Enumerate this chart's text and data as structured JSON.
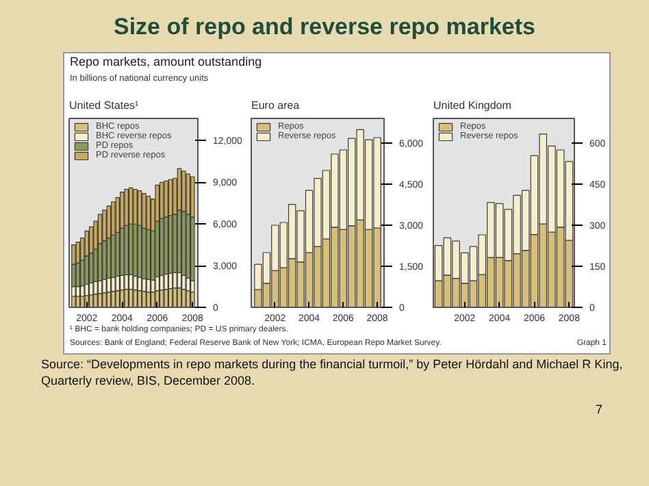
{
  "chart_data": [
    {
      "type": "bar",
      "title": "United States¹",
      "stacked": true,
      "legend": "top left",
      "grid": false,
      "x": [
        2001.25,
        2001.5,
        2001.75,
        2002.0,
        2002.25,
        2002.5,
        2002.75,
        2003.0,
        2003.25,
        2003.5,
        2003.75,
        2004.0,
        2004.25,
        2004.5,
        2004.75,
        2005.0,
        2005.25,
        2005.5,
        2005.75,
        2006.0,
        2006.25,
        2006.5,
        2006.75,
        2007.0,
        2007.25,
        2007.5,
        2007.75,
        2008.0
      ],
      "xlim": [
        2001.0,
        2008.3
      ],
      "xticks": [
        2002,
        2004,
        2006,
        2008
      ],
      "ylim": [
        0,
        13600
      ],
      "yticks": [
        {
          "value": 0,
          "label": "0"
        },
        {
          "value": 3000,
          "label": "3,000"
        },
        {
          "value": 6000,
          "label": "6,000"
        },
        {
          "value": 9000,
          "label": "9,000"
        },
        {
          "value": 12000,
          "label": "12,000"
        }
      ],
      "series": [
        {
          "name": "BHC repos",
          "color": "#d8bf78",
          "values": [
            800,
            800,
            800,
            850,
            900,
            950,
            1000,
            1050,
            1100,
            1150,
            1200,
            1250,
            1300,
            1300,
            1250,
            1200,
            1150,
            1100,
            1100,
            1200,
            1250,
            1300,
            1350,
            1400,
            1400,
            1300,
            1200,
            1100
          ]
        },
        {
          "name": "BHC reverse repos",
          "color": "#f6eecb",
          "values": [
            700,
            700,
            750,
            800,
            850,
            900,
            900,
            950,
            1000,
            1000,
            1050,
            1050,
            1050,
            1050,
            1000,
            950,
            900,
            900,
            850,
            1000,
            1050,
            1100,
            1100,
            1100,
            1100,
            1000,
            900,
            800
          ]
        },
        {
          "name": "PD repos",
          "color": "#8d9a5c",
          "values": [
            1600,
            1700,
            1850,
            2050,
            2150,
            2350,
            2700,
            2800,
            2900,
            3050,
            3150,
            3400,
            3550,
            3650,
            3750,
            3750,
            3650,
            3600,
            3550,
            4000,
            4100,
            4100,
            4150,
            4200,
            4500,
            4600,
            4600,
            4600
          ]
        },
        {
          "name": "PD reverse repos",
          "color": "#c9a95c",
          "values": [
            1400,
            1500,
            1600,
            1800,
            1900,
            2000,
            2100,
            2200,
            2300,
            2400,
            2500,
            2600,
            2600,
            2600,
            2500,
            2500,
            2500,
            2400,
            2300,
            2600,
            2600,
            2600,
            2600,
            2600,
            3000,
            2900,
            2900,
            2900
          ]
        }
      ],
      "annotations": [
        "Size of repo and reverse repo markets",
        "Repo markets, amount outstanding",
        "In billions of national currency units",
        "¹ BHC = bank holding companies; PD = US primary dealers.",
        "Sources: Bank of England; Federal Reserve Bank of New York; ICMA, European Repo Market Survey.",
        "Graph 1",
        "Source: “Developments in repo markets during the financial turmoil,” by Peter Hördahl and Michael R King, Quarterly review, BIS, December 2008.",
        "7"
      ]
    },
    {
      "type": "bar",
      "title": "Euro area",
      "stacked": true,
      "legend": "top left",
      "grid": false,
      "x": [
        2001.0,
        2001.5,
        2002.0,
        2002.5,
        2003.0,
        2003.5,
        2004.0,
        2004.5,
        2005.0,
        2005.5,
        2006.0,
        2006.5,
        2007.0,
        2007.5,
        2008.0
      ],
      "xlim": [
        2000.6,
        2008.4
      ],
      "xticks": [
        2002,
        2004,
        2006,
        2008
      ],
      "ylim": [
        0,
        6900
      ],
      "yticks": [
        {
          "value": 0,
          "label": "0"
        },
        {
          "value": 1500,
          "label": "1,500"
        },
        {
          "value": 3000,
          "label": "3,000"
        },
        {
          "value": 4500,
          "label": "4,500"
        },
        {
          "value": 6000,
          "label": "6,000"
        }
      ],
      "series": [
        {
          "name": "Repos",
          "color": "#d8bf78",
          "values": [
            650,
            880,
            1340,
            1450,
            1780,
            1660,
            2000,
            2220,
            2500,
            2930,
            2840,
            2980,
            3190,
            2840,
            2900
          ]
        },
        {
          "name": "Reverse repos",
          "color": "#f6eecb",
          "values": [
            920,
            1120,
            1660,
            1650,
            1980,
            1870,
            2270,
            2490,
            2500,
            2670,
            2910,
            3190,
            3300,
            3280,
            3300
          ]
        }
      ]
    },
    {
      "type": "bar",
      "title": "United Kingdom",
      "stacked": true,
      "legend": "top left",
      "grid": false,
      "x": [
        2000.5,
        2001.0,
        2001.5,
        2002.0,
        2002.5,
        2003.0,
        2003.5,
        2004.0,
        2004.5,
        2005.0,
        2005.5,
        2006.0,
        2006.5,
        2007.0,
        2007.5,
        2008.0
      ],
      "xlim": [
        2000.2,
        2008.3
      ],
      "xticks": [
        2002,
        2004,
        2006,
        2008
      ],
      "ylim": [
        0,
        690
      ],
      "yticks": [
        0,
        150,
        300,
        450,
        600
      ],
      "series": [
        {
          "name": "Repos",
          "color": "#d8bf78",
          "values": [
            97,
            118,
            106,
            88,
            97,
            120,
            182,
            182,
            171,
            196,
            208,
            266,
            305,
            275,
            293,
            245
          ]
        },
        {
          "name": "Reverse repos",
          "color": "#f6eecb",
          "values": [
            129,
            136,
            136,
            111,
            125,
            145,
            201,
            197,
            187,
            213,
            219,
            288,
            328,
            314,
            282,
            288
          ]
        }
      ]
    }
  ]
}
